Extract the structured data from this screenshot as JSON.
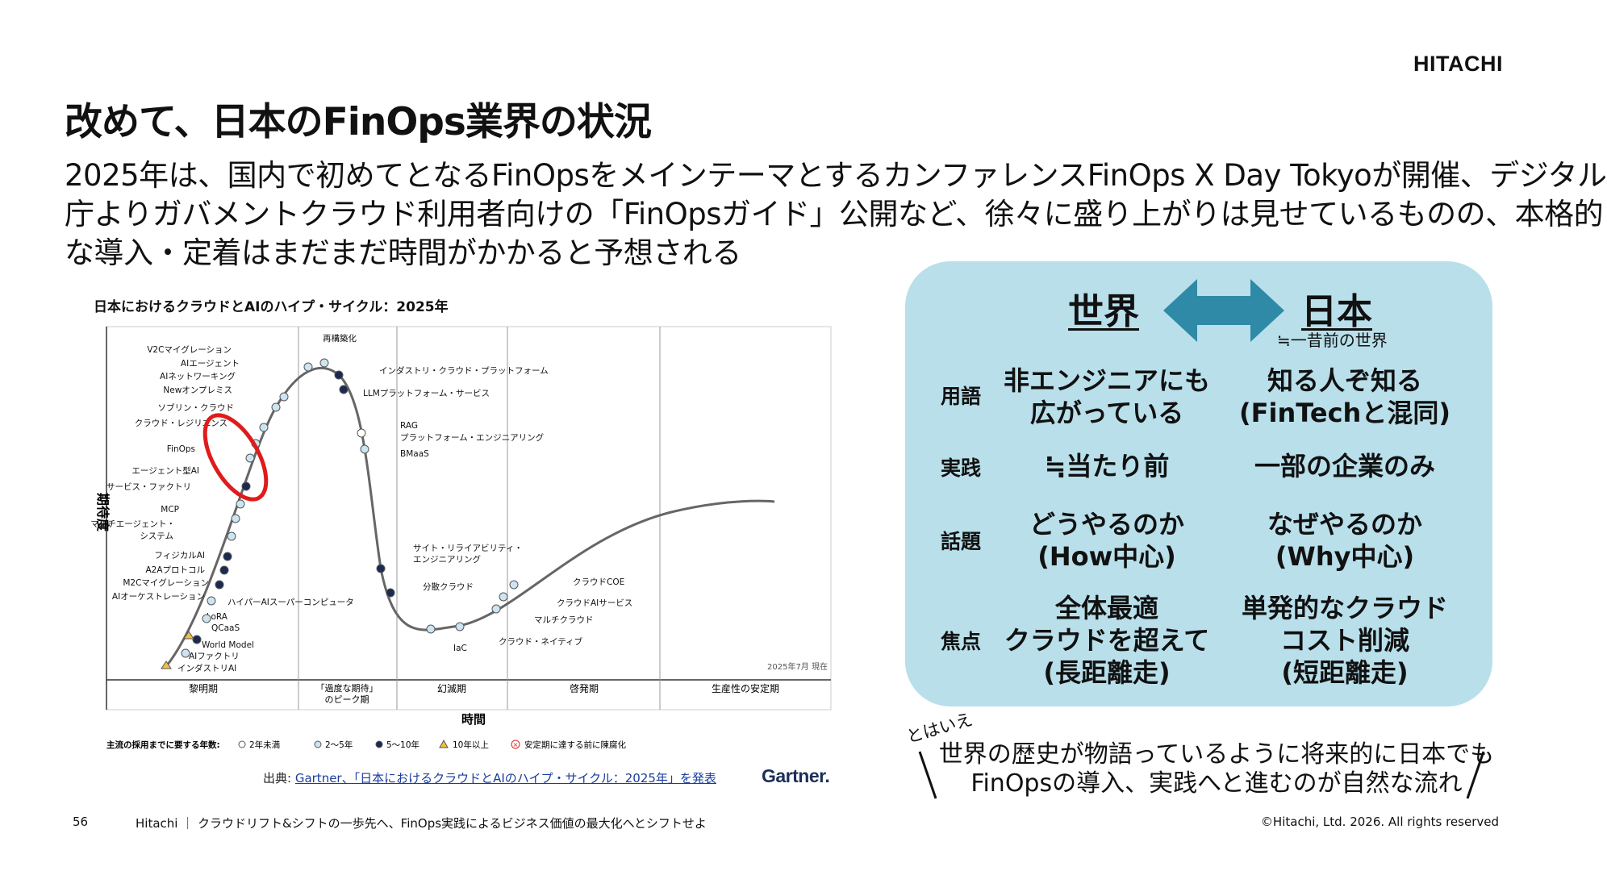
{
  "logo": "HITACHI",
  "title": "改めて、日本のFinOps業界の状況",
  "subtitle": [
    "2025年は、国内で初めてとなるFinOpsをメインテーマとするカンファレンスFinOps X Day Tokyoが開催、デジタル",
    "庁よりガバメントクラウド利用者向けの「FinOpsガイド」公開など、徐々に盛り上がりは見せているものの、本格的",
    "な導入・定着はまだまだ時間がかかると予想される"
  ],
  "hype_cycle": {
    "title": "日本におけるクラウドとAIのハイプ・サイクル：2025年",
    "y_label": "期待度",
    "x_label": "時間",
    "phases": [
      "黎明期",
      "「過度な期待」\nのピーク期",
      "幻滅期",
      "啓発期",
      "生産性の安定期"
    ],
    "date_note": "2025年7月 現在",
    "legend_title": "主流の採用までに要する年数:",
    "legend": [
      "2年未満",
      "2〜5年",
      "5〜10年",
      "10年以上",
      "安定期に達する前に陳腐化"
    ],
    "items_left": [
      "V2Cマイグレーション",
      "AIエージェント",
      "AIネットワーキング",
      "Newオンプレミス",
      "ソブリン・クラウド",
      "クラウド・レジリエンス",
      "FinOps",
      "エージェント型AI",
      "サービス・ファクトリ",
      "MCP",
      "マルチエージェント・",
      "システム",
      "フィジカルAI",
      "A2Aプロトコル",
      "M2Cマイグレーション",
      "AIオーケストレーション",
      "LoRA",
      "QCaaS",
      "World Model",
      "AIファクトリ",
      "インダストリAI"
    ],
    "items_right": [
      "再構築化",
      "インダストリ・クラウド・プラットフォーム",
      "LLMプラットフォーム・サービス",
      "RAG",
      "プラットフォーム・エンジニアリング",
      "BMaaS",
      "サイト・リライアビリティ・",
      "エンジニアリング",
      "分散クラウド",
      "IaC",
      "ハイパーAIスーパーコンピュータ",
      "クラウドCOE",
      "クラウドAIサービス",
      "マルチクラウド",
      "クラウド・ネイティブ"
    ]
  },
  "source": {
    "prefix": "出典: ",
    "link": "Gartner、「日本におけるクラウドとAIのハイプ・サイクル：2025年」を発表"
  },
  "gartner": "Gartner.",
  "panel": {
    "head_world": "世界",
    "head_japan": "日本",
    "japan_note": "≒一昔前の世界",
    "rows": [
      {
        "label": "用語",
        "world": "非エンジニアにも\n広がっている",
        "japan": "知る人ぞ知る\n(FinTechと混同)"
      },
      {
        "label": "実践",
        "world": "≒当たり前",
        "japan": "一部の企業のみ"
      },
      {
        "label": "話題",
        "world": "どうやるのか\n(How中心)",
        "japan": "なぜやるのか\n(Why中心)"
      },
      {
        "label": "焦点",
        "world": "全体最適\nクラウドを超えて\n(長距離走)",
        "japan": "単発的なクラウド\nコスト削減\n(短距離走)"
      }
    ],
    "arrow_color": "#2e8aa6",
    "bg_color": "#b8dfea"
  },
  "tohaie": "とはいえ",
  "quote": [
    "世界の歴史が物語っているように将来的に日本でも",
    "FinOpsの導入、実践へと進むのが自然な流れ"
  ],
  "footer": {
    "page": "56",
    "text": "Hitachi ｜ クラウドリフト&シフトの一歩先へ、FinOps実践によるビジネス価値の最大化へとシフトせよ",
    "copyright": "©Hitachi, Ltd. 2026. All rights reserved"
  }
}
